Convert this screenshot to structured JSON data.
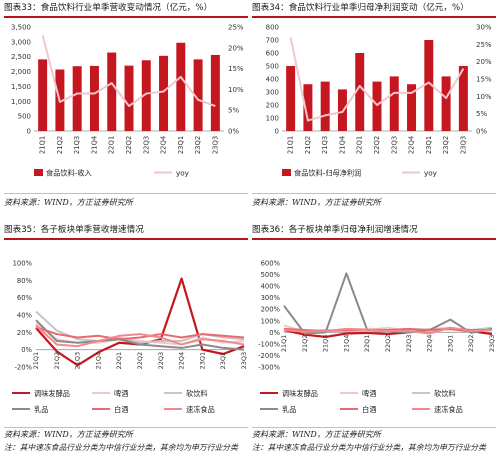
{
  "charts": {
    "c1": {
      "fig_title": "图表33：食品饮料行业单季营收变动情况（亿元，%）",
      "source": "资料来源：WIND，方正证券研究所",
      "chart_data": {
        "type": "bar+line",
        "categories": [
          "21Q1",
          "21Q2",
          "21Q3",
          "21Q4",
          "22Q1",
          "22Q2",
          "22Q3",
          "22Q4",
          "23Q1",
          "23Q2",
          "23Q3"
        ],
        "bars": {
          "name": "食品饮料-收入",
          "color": "#c5171f",
          "values": [
            2410,
            2070,
            2180,
            2190,
            2640,
            2200,
            2380,
            2530,
            2970,
            2410,
            2560
          ]
        },
        "line": {
          "name": "yoy",
          "color": "#f3c6cd",
          "values": [
            23,
            7,
            9,
            9,
            11.5,
            6,
            9,
            9.5,
            13,
            7.5,
            6
          ]
        },
        "ylim_left": [
          0,
          3500
        ],
        "left_ticks": [
          0,
          500,
          1000,
          1500,
          2000,
          2500,
          3000,
          3500
        ],
        "left_tick_labels": [
          "0",
          "500",
          "1,000",
          "1,500",
          "2,000",
          "2,500",
          "3,000",
          "3,500"
        ],
        "ylim_right": [
          0,
          25
        ],
        "right_ticks": [
          0,
          5,
          10,
          15,
          20,
          25
        ],
        "right_tick_labels": [
          "0%",
          "5%",
          "10%",
          "15%",
          "20%",
          "25%"
        ]
      }
    },
    "c2": {
      "fig_title": "图表34：食品饮料行业单季归母净利润变动（亿元，%）",
      "source": "资料来源：WIND，方正证券研究所",
      "chart_data": {
        "type": "bar+line",
        "categories": [
          "21Q1",
          "21Q2",
          "21Q3",
          "21Q4",
          "22Q1",
          "22Q2",
          "22Q3",
          "22Q4",
          "23Q1",
          "23Q2",
          "23Q3"
        ],
        "bars": {
          "name": "食品饮料-归母净利润",
          "color": "#c5171f",
          "values": [
            500,
            360,
            380,
            320,
            600,
            380,
            420,
            360,
            700,
            420,
            500
          ]
        },
        "line": {
          "name": "yoy",
          "color": "#f3c6cd",
          "values": [
            27,
            3,
            4.5,
            5.5,
            13,
            7.5,
            11,
            11,
            14,
            9.5,
            18
          ]
        },
        "ylim_left": [
          0,
          800
        ],
        "left_ticks": [
          0,
          100,
          200,
          300,
          400,
          500,
          600,
          700,
          800
        ],
        "left_tick_labels": [
          "0",
          "100",
          "200",
          "300",
          "400",
          "500",
          "600",
          "700",
          "800"
        ],
        "ylim_right": [
          0,
          30
        ],
        "right_ticks": [
          0,
          5,
          10,
          15,
          20,
          25,
          30
        ],
        "right_tick_labels": [
          "0%",
          "5%",
          "10%",
          "15%",
          "20%",
          "25%",
          "30%"
        ]
      }
    },
    "c3": {
      "fig_title": "图表35：各子板块单季营收增速情况",
      "source": "资料来源：WIND，方正证券研究所",
      "note": "注：其中速冻食品行业分类为中信行业分类，其余均为申万行业分类",
      "chart_data": {
        "type": "line",
        "categories": [
          "21Q1",
          "21Q2",
          "21Q3",
          "21Q4",
          "22Q1",
          "22Q2",
          "22Q3",
          "22Q4",
          "23Q1",
          "23Q2",
          "23Q3"
        ],
        "ylim": [
          -20,
          100
        ],
        "ticks": [
          -20,
          0,
          20,
          40,
          60,
          80,
          100
        ],
        "tick_labels": [
          "-20%",
          "0%",
          "20%",
          "40%",
          "60%",
          "80%",
          "100%"
        ],
        "series": [
          {
            "name": "调味发酵品",
            "color": "#c5171f",
            "width": 2.2,
            "values": [
              25,
              -2,
              -18,
              -3,
              8,
              6,
              12,
              82,
              0,
              -5,
              4
            ]
          },
          {
            "name": "啤酒",
            "color": "#f3c6cd",
            "width": 2.0,
            "values": [
              30,
              12,
              8,
              8,
              12,
              10,
              8,
              6,
              14,
              8,
              10
            ]
          },
          {
            "name": "软饮料",
            "color": "#c6c6c6",
            "width": 2.0,
            "values": [
              44,
              22,
              12,
              10,
              14,
              8,
              10,
              10,
              18,
              14,
              12
            ]
          },
          {
            "name": "乳品",
            "color": "#8a8a8a",
            "width": 2.0,
            "values": [
              34,
              10,
              8,
              10,
              12,
              6,
              4,
              2,
              6,
              2,
              0
            ]
          },
          {
            "name": "白酒",
            "color": "#e86a6e",
            "width": 2.0,
            "values": [
              26,
              18,
              14,
              16,
              12,
              14,
              18,
              14,
              18,
              16,
              14
            ]
          },
          {
            "name": "速冻食品",
            "color": "#f08a8a",
            "width": 2.0,
            "values": [
              28,
              6,
              4,
              10,
              16,
              18,
              14,
              6,
              12,
              10,
              6
            ]
          }
        ]
      }
    },
    "c4": {
      "fig_title": "图表36：各子板块单季归母净利润增速情况",
      "source": "资料来源：WIND，方正证券研究所",
      "note": "注：其中速冻食品行业分类为中信行业分类，其余均为申万行业分类",
      "chart_data": {
        "type": "line",
        "categories": [
          "21Q1",
          "21Q2",
          "21Q3",
          "21Q4",
          "22Q1",
          "22Q2",
          "22Q3",
          "22Q4",
          "23Q1",
          "23Q2",
          "23Q3"
        ],
        "ylim": [
          -300,
          600
        ],
        "ticks": [
          -300,
          -200,
          -100,
          0,
          100,
          200,
          300,
          400,
          500,
          600
        ],
        "tick_labels": [
          "-300%",
          "-200%",
          "-100%",
          "0%",
          "100%",
          "200%",
          "300%",
          "400%",
          "500%",
          "600%"
        ],
        "series": [
          {
            "name": "调味发酵品",
            "color": "#c5171f",
            "width": 2.2,
            "values": [
              20,
              -20,
              -40,
              -10,
              -5,
              -15,
              0,
              20,
              30,
              10,
              -15
            ]
          },
          {
            "name": "啤酒",
            "color": "#f3c6cd",
            "width": 2.0,
            "values": [
              60,
              5,
              20,
              10,
              20,
              40,
              10,
              30,
              40,
              20,
              30
            ]
          },
          {
            "name": "软饮料",
            "color": "#c6c6c6",
            "width": 2.0,
            "values": [
              30,
              10,
              20,
              10,
              15,
              10,
              20,
              10,
              30,
              20,
              40
            ]
          },
          {
            "name": "乳品",
            "color": "#8a8a8a",
            "width": 2.0,
            "values": [
              230,
              -10,
              0,
              510,
              20,
              10,
              0,
              20,
              110,
              -5,
              30
            ]
          },
          {
            "name": "白酒",
            "color": "#e86a6e",
            "width": 2.0,
            "values": [
              30,
              20,
              10,
              20,
              25,
              20,
              30,
              20,
              30,
              20,
              20
            ]
          },
          {
            "name": "速冻食品",
            "color": "#f08a8a",
            "width": 2.0,
            "values": [
              20,
              5,
              10,
              30,
              25,
              10,
              10,
              -10,
              40,
              10,
              20
            ]
          }
        ]
      }
    }
  }
}
